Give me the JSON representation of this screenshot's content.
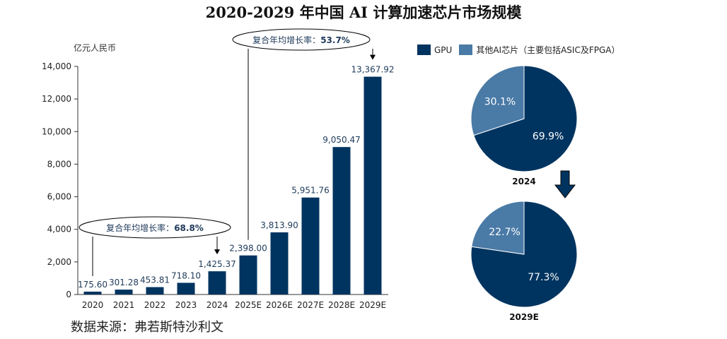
{
  "title": "2020-2029 年中国 AI 计算加速芯片市场规模",
  "unit_label": "亿元人民币",
  "source": "数据来源：弗若斯特沙利文",
  "colors": {
    "primary": "#003460",
    "secondary": "#4a7aa6",
    "axis": "#333333"
  },
  "chart_data": [
    {
      "type": "bar",
      "title": "2020-2029 年中国 AI 计算加速芯片市场规模",
      "ylabel": "亿元人民币",
      "ylim": [
        0,
        14000
      ],
      "yticks": [
        0,
        2000,
        4000,
        6000,
        8000,
        10000,
        12000,
        14000
      ],
      "ytick_labels": [
        "0",
        "2,000",
        "4,000",
        "6,000",
        "8,000",
        "10,000",
        "12,000",
        "14,000"
      ],
      "categories": [
        "2020",
        "2021",
        "2022",
        "2023",
        "2024",
        "2025E",
        "2026E",
        "2027E",
        "2028E",
        "2029E"
      ],
      "values": [
        175.6,
        301.28,
        453.81,
        718.1,
        1425.37,
        2398.0,
        3813.9,
        5951.76,
        9050.47,
        13367.92
      ],
      "value_labels": [
        "175.60",
        "301.28",
        "453.81",
        "718.10",
        "1,425.37",
        "2,398.00",
        "3,813.90",
        "5,951.76",
        "9,050.47",
        "13,367.92"
      ],
      "annotations": [
        {
          "text_prefix": "复合年均增长率：",
          "text_value": "68.8%",
          "from": "2020",
          "to": "2024"
        },
        {
          "text_prefix": "复合年均增长率：",
          "text_value": "53.7%",
          "from": "2025E",
          "to": "2029E"
        }
      ]
    },
    {
      "type": "pie",
      "title": "2024",
      "labels": [
        "GPU",
        "其他AI芯片（主要包括ASIC及FPGA）"
      ],
      "values": [
        69.9,
        30.1
      ],
      "value_labels": [
        "69.9%",
        "30.1%"
      ]
    },
    {
      "type": "pie",
      "title": "2029E",
      "labels": [
        "GPU",
        "其他AI芯片（主要包括ASIC及FPGA）"
      ],
      "values": [
        77.3,
        22.7
      ],
      "value_labels": [
        "77.3%",
        "22.7%"
      ]
    }
  ]
}
